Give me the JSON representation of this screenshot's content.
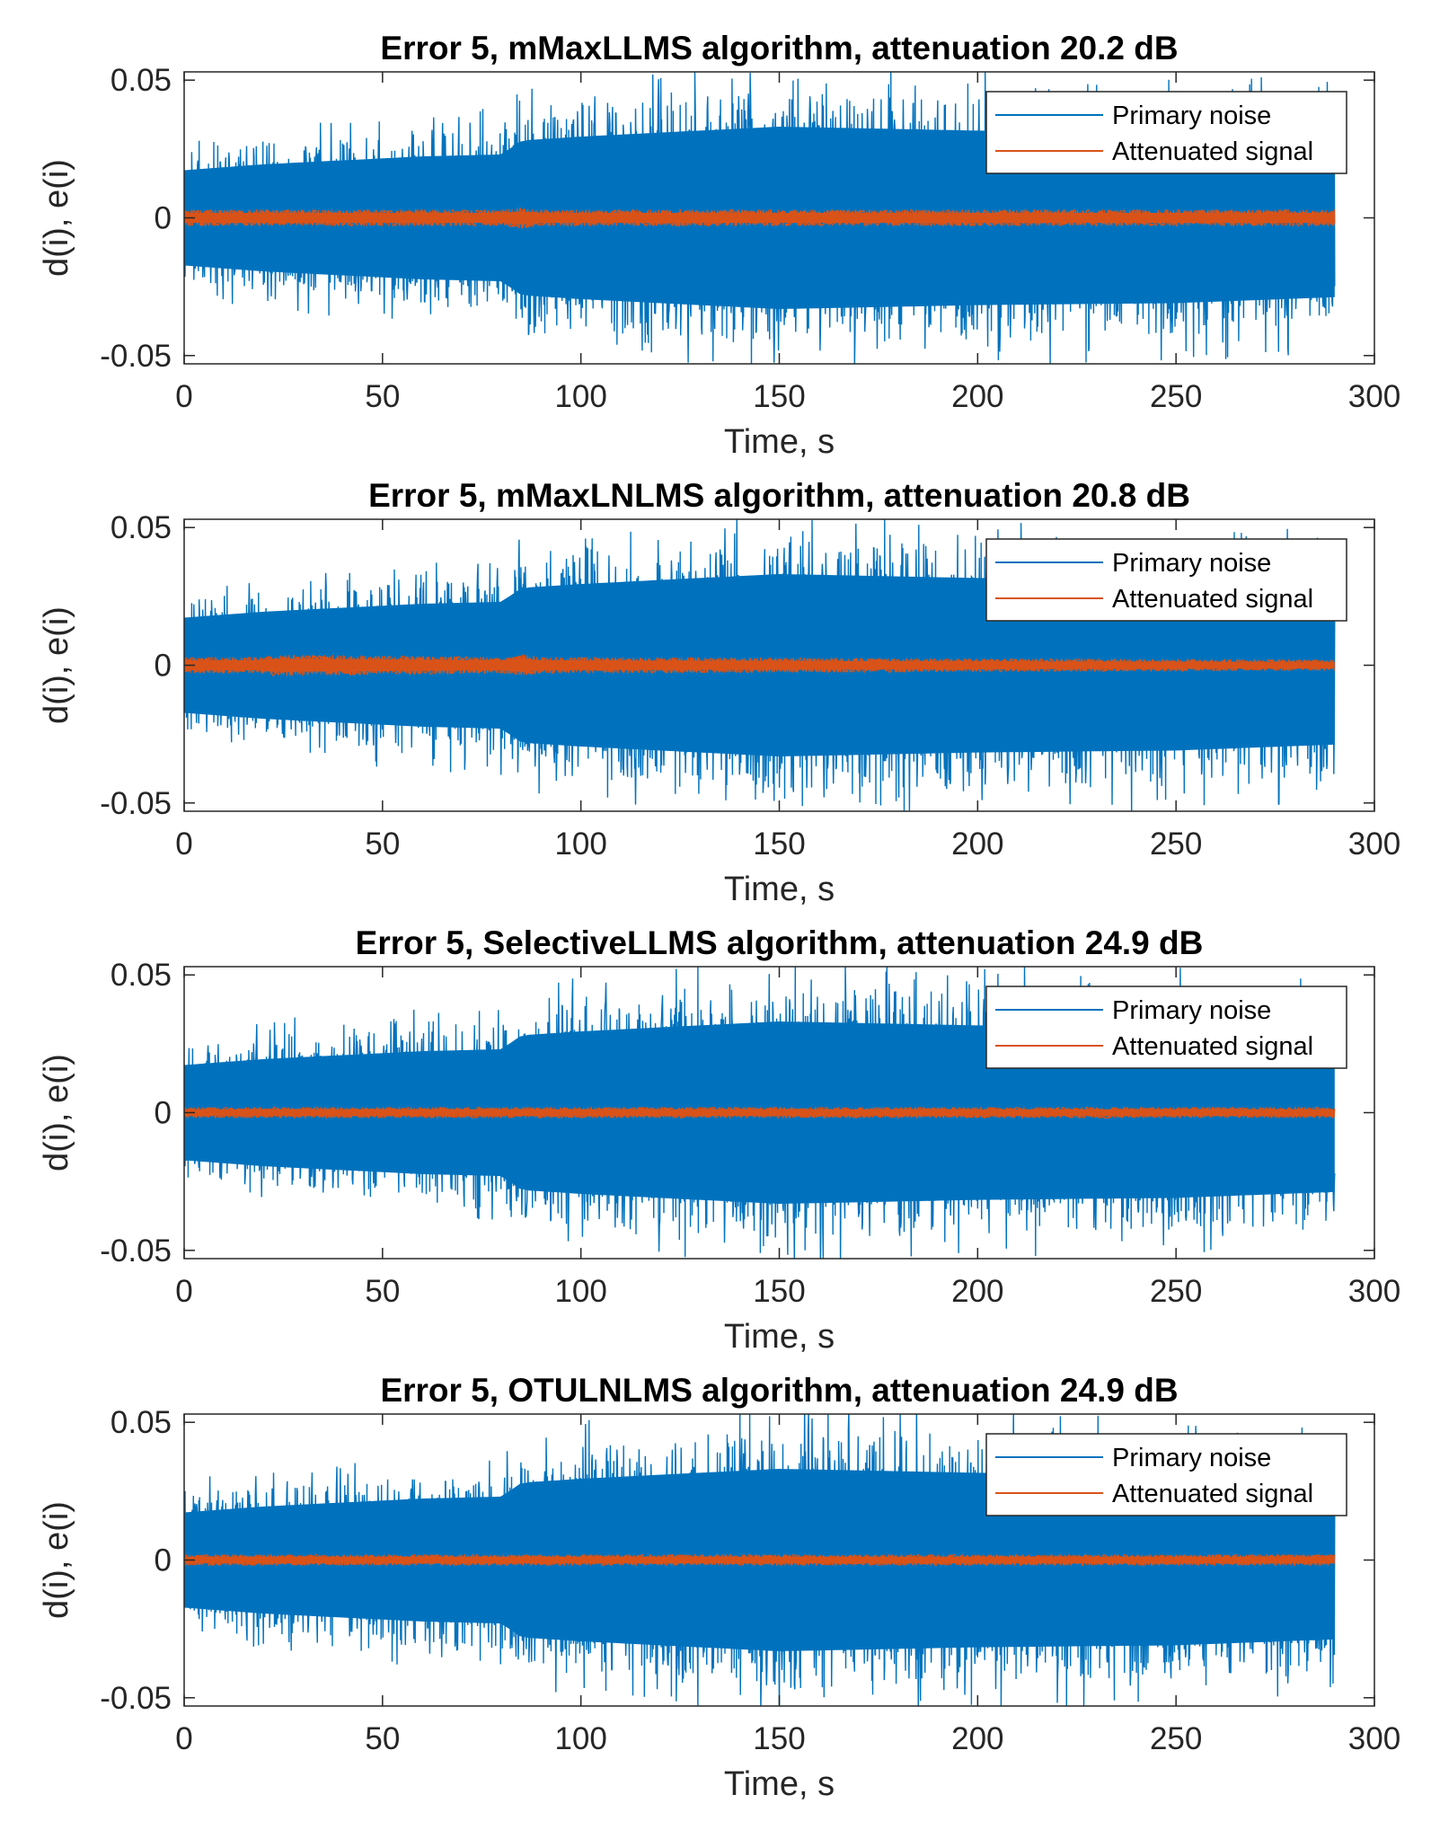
{
  "colors": {
    "primary_noise": "#0072BD",
    "attenuated_signal": "#D95319",
    "axes": "#262626",
    "background": "#ffffff"
  },
  "chart_data": [
    {
      "type": "line",
      "title": "Error 5, mMaxLLMS algorithm, attenuation 20.2 dB",
      "xlabel": "Time, s",
      "ylabel": "d(i), e(i)",
      "xlim": [
        0,
        300
      ],
      "ylim": [
        -0.053,
        0.053
      ],
      "xticks": [
        0,
        50,
        100,
        150,
        200,
        250,
        300
      ],
      "xtick_labels": [
        "0",
        "50",
        "100",
        "150",
        "200",
        "250",
        "300"
      ],
      "yticks": [
        -0.05,
        0,
        0.05
      ],
      "ytick_labels": [
        "-0.05",
        "0",
        "0.05"
      ],
      "grid": false,
      "legend_position": "top-right",
      "series": [
        {
          "name": "Primary noise",
          "x_range": [
            0,
            290
          ],
          "envelope": [
            [
              0,
              0.024
            ],
            [
              20,
              0.027
            ],
            [
              40,
              0.029
            ],
            [
              60,
              0.031
            ],
            [
              80,
              0.032
            ],
            [
              85,
              0.039
            ],
            [
              100,
              0.041
            ],
            [
              150,
              0.046
            ],
            [
              200,
              0.044
            ],
            [
              250,
              0.043
            ],
            [
              290,
              0.04
            ]
          ]
        },
        {
          "name": "Attenuated signal",
          "x_range": [
            0,
            290
          ],
          "envelope": [
            [
              0,
              0.003
            ],
            [
              80,
              0.003
            ],
            [
              85,
              0.004
            ],
            [
              90,
              0.003
            ],
            [
              290,
              0.003
            ]
          ]
        }
      ]
    },
    {
      "type": "line",
      "title": "Error 5, mMaxLNLMS algorithm, attenuation 20.8 dB",
      "xlabel": "Time, s",
      "ylabel": "d(i), e(i)",
      "xlim": [
        0,
        300
      ],
      "ylim": [
        -0.053,
        0.053
      ],
      "xticks": [
        0,
        50,
        100,
        150,
        200,
        250,
        300
      ],
      "xtick_labels": [
        "0",
        "50",
        "100",
        "150",
        "200",
        "250",
        "300"
      ],
      "yticks": [
        -0.05,
        0,
        0.05
      ],
      "ytick_labels": [
        "-0.05",
        "0",
        "0.05"
      ],
      "grid": false,
      "legend_position": "top-right",
      "series": [
        {
          "name": "Primary noise",
          "x_range": [
            0,
            290
          ],
          "envelope": [
            [
              0,
              0.024
            ],
            [
              20,
              0.027
            ],
            [
              40,
              0.029
            ],
            [
              60,
              0.031
            ],
            [
              80,
              0.032
            ],
            [
              85,
              0.039
            ],
            [
              100,
              0.041
            ],
            [
              150,
              0.046
            ],
            [
              200,
              0.044
            ],
            [
              250,
              0.043
            ],
            [
              290,
              0.04
            ]
          ]
        },
        {
          "name": "Attenuated signal",
          "x_range": [
            0,
            290
          ],
          "envelope": [
            [
              0,
              0.003
            ],
            [
              20,
              0.003
            ],
            [
              22,
              0.004
            ],
            [
              80,
              0.003
            ],
            [
              85,
              0.004
            ],
            [
              90,
              0.003
            ],
            [
              290,
              0.002
            ]
          ]
        }
      ]
    },
    {
      "type": "line",
      "title": "Error 5, SelectiveLLMS algorithm, attenuation 24.9 dB",
      "xlabel": "Time, s",
      "ylabel": "d(i), e(i)",
      "xlim": [
        0,
        300
      ],
      "ylim": [
        -0.053,
        0.053
      ],
      "xticks": [
        0,
        50,
        100,
        150,
        200,
        250,
        300
      ],
      "xtick_labels": [
        "0",
        "50",
        "100",
        "150",
        "200",
        "250",
        "300"
      ],
      "yticks": [
        -0.05,
        0,
        0.05
      ],
      "ytick_labels": [
        "-0.05",
        "0",
        "0.05"
      ],
      "grid": false,
      "legend_position": "top-right",
      "series": [
        {
          "name": "Primary noise",
          "x_range": [
            0,
            290
          ],
          "envelope": [
            [
              0,
              0.024
            ],
            [
              20,
              0.027
            ],
            [
              40,
              0.029
            ],
            [
              60,
              0.031
            ],
            [
              80,
              0.032
            ],
            [
              85,
              0.039
            ],
            [
              100,
              0.041
            ],
            [
              150,
              0.046
            ],
            [
              200,
              0.044
            ],
            [
              250,
              0.043
            ],
            [
              290,
              0.04
            ]
          ]
        },
        {
          "name": "Attenuated signal",
          "x_range": [
            0,
            290
          ],
          "envelope": [
            [
              0,
              0.002
            ],
            [
              290,
              0.002
            ]
          ]
        }
      ]
    },
    {
      "type": "line",
      "title": "Error 5, OTULNLMS algorithm, attenuation 24.9 dB",
      "xlabel": "Time, s",
      "ylabel": "d(i), e(i)",
      "xlim": [
        0,
        300
      ],
      "ylim": [
        -0.053,
        0.053
      ],
      "xticks": [
        0,
        50,
        100,
        150,
        200,
        250,
        300
      ],
      "xtick_labels": [
        "0",
        "50",
        "100",
        "150",
        "200",
        "250",
        "300"
      ],
      "yticks": [
        -0.05,
        0,
        0.05
      ],
      "ytick_labels": [
        "-0.05",
        "0",
        "0.05"
      ],
      "grid": false,
      "legend_position": "top-right",
      "series": [
        {
          "name": "Primary noise",
          "x_range": [
            0,
            290
          ],
          "envelope": [
            [
              0,
              0.024
            ],
            [
              20,
              0.027
            ],
            [
              40,
              0.029
            ],
            [
              60,
              0.031
            ],
            [
              80,
              0.032
            ],
            [
              85,
              0.039
            ],
            [
              100,
              0.041
            ],
            [
              150,
              0.046
            ],
            [
              200,
              0.044
            ],
            [
              250,
              0.043
            ],
            [
              290,
              0.04
            ]
          ]
        },
        {
          "name": "Attenuated signal",
          "x_range": [
            0,
            290
          ],
          "envelope": [
            [
              0,
              0.002
            ],
            [
              290,
              0.002
            ]
          ]
        }
      ]
    }
  ]
}
